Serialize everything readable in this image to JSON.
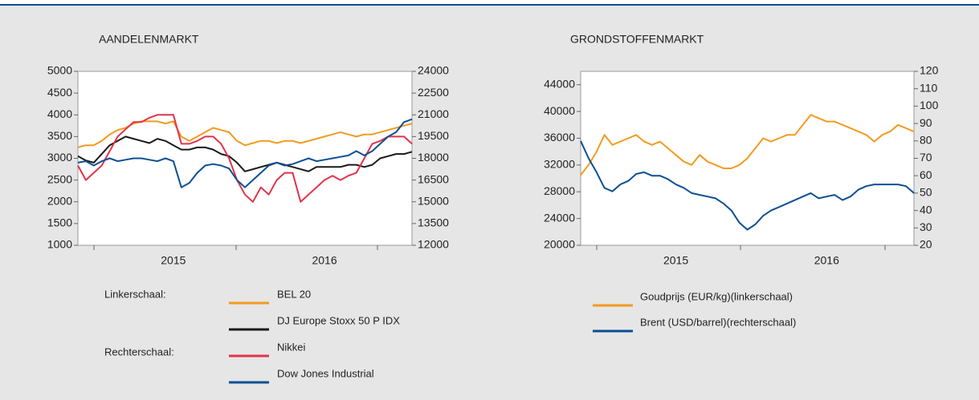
{
  "chart_data": [
    {
      "type": "line",
      "title": "AANDELENMARKT",
      "categories": [
        null,
        null,
        null,
        null,
        null,
        null,
        null,
        null,
        null,
        null,
        null,
        null,
        "2015",
        null,
        null,
        null,
        null,
        null,
        null,
        null,
        null,
        null,
        null,
        null,
        null,
        null,
        null,
        null,
        null,
        null,
        null,
        "2016",
        null,
        null,
        null,
        null,
        null,
        null,
        null,
        null,
        null,
        null,
        null
      ],
      "ylim": [
        1000,
        5000
      ],
      "yticks": [
        1000,
        1500,
        2000,
        2500,
        3000,
        3500,
        4000,
        4500,
        5000
      ],
      "y2lim": [
        12000,
        24000
      ],
      "y2ticks": [
        12000,
        13500,
        15000,
        16500,
        18000,
        19500,
        21000,
        22500,
        24000
      ],
      "legend_left_label": "Linkerschaal:",
      "legend_right_label": "Rechterschaal:",
      "series": [
        {
          "name": "BEL 20",
          "color": "#f39b1f",
          "axis": "y",
          "values": [
            3250,
            3300,
            3300,
            3400,
            3550,
            3650,
            3700,
            3800,
            3850,
            3850,
            3850,
            3800,
            3850,
            3500,
            3400,
            3500,
            3600,
            3700,
            3650,
            3600,
            3400,
            3300,
            3350,
            3400,
            3400,
            3350,
            3400,
            3400,
            3350,
            3400,
            3450,
            3500,
            3550,
            3600,
            3550,
            3500,
            3550,
            3550,
            3600,
            3650,
            3700,
            3750,
            3800
          ]
        },
        {
          "name": "DJ Europe Stoxx 50 P IDX",
          "color": "#1a1a1a",
          "axis": "y",
          "values": [
            3050,
            2950,
            2900,
            3100,
            3300,
            3400,
            3500,
            3450,
            3400,
            3350,
            3450,
            3400,
            3300,
            3200,
            3200,
            3250,
            3250,
            3200,
            3100,
            3050,
            2900,
            2700,
            2750,
            2800,
            2850,
            2900,
            2850,
            2800,
            2750,
            2700,
            2800,
            2800,
            2800,
            2800,
            2850,
            2850,
            2800,
            2850,
            3000,
            3050,
            3100,
            3100,
            3150
          ]
        },
        {
          "name": "Nikkei",
          "color": "#e0344a",
          "axis": "y2",
          "values": [
            17500,
            16500,
            17000,
            17500,
            18500,
            19500,
            20000,
            20500,
            20500,
            20800,
            21000,
            21000,
            21000,
            19000,
            19000,
            19200,
            19500,
            19500,
            19000,
            18000,
            16500,
            15500,
            15000,
            16000,
            15500,
            16500,
            17000,
            17000,
            15000,
            15500,
            16000,
            16500,
            16800,
            16500,
            16800,
            17000,
            18000,
            19000,
            19200,
            19500,
            19500,
            19500,
            19000
          ]
        },
        {
          "name": "Dow Jones Industrial",
          "color": "#0b4f94",
          "axis": "y2",
          "values": [
            17700,
            17800,
            17500,
            17800,
            18000,
            17800,
            17900,
            18000,
            18000,
            17900,
            17800,
            18000,
            17800,
            16000,
            16300,
            17000,
            17500,
            17600,
            17500,
            17300,
            16500,
            16000,
            16500,
            17000,
            17500,
            17700,
            17500,
            17600,
            17800,
            18000,
            17800,
            17900,
            18000,
            18100,
            18200,
            18500,
            18200,
            18500,
            19000,
            19500,
            19800,
            20500,
            20700
          ]
        }
      ]
    },
    {
      "type": "line",
      "title": "GRONDSTOFFENMARKT",
      "categories": [
        null,
        null,
        null,
        null,
        null,
        null,
        null,
        null,
        null,
        null,
        null,
        null,
        "2015",
        null,
        null,
        null,
        null,
        null,
        null,
        null,
        null,
        null,
        null,
        null,
        null,
        null,
        null,
        null,
        null,
        null,
        null,
        "2016",
        null,
        null,
        null,
        null,
        null,
        null,
        null,
        null,
        null,
        null,
        null
      ],
      "ylim": [
        20000,
        46000
      ],
      "yticks": [
        20000,
        24000,
        28000,
        32000,
        36000,
        40000,
        44000
      ],
      "y2lim": [
        20,
        120
      ],
      "y2ticks": [
        20,
        30,
        40,
        50,
        60,
        70,
        80,
        90,
        100,
        110,
        120
      ],
      "series": [
        {
          "name": "Goudprijs (EUR/kg)(linkerschaal)",
          "color": "#f39b1f",
          "axis": "y",
          "values": [
            30500,
            32000,
            34000,
            36500,
            35000,
            35500,
            36000,
            36500,
            35500,
            35000,
            35500,
            34500,
            33500,
            32500,
            32000,
            33500,
            32500,
            32000,
            31500,
            31500,
            32000,
            33000,
            34500,
            36000,
            35500,
            36000,
            36500,
            36500,
            38000,
            39500,
            39000,
            38500,
            38500,
            38000,
            37500,
            37000,
            36500,
            35500,
            36500,
            37000,
            38000,
            37500,
            37000
          ]
        },
        {
          "name": "Brent (USD/barrel)(rechterschaal)",
          "color": "#0b4f94",
          "axis": "y2",
          "values": [
            80,
            70,
            62,
            53,
            51,
            55,
            57,
            61,
            62,
            60,
            60,
            58,
            55,
            53,
            50,
            49,
            48,
            47,
            44,
            40,
            33,
            29,
            32,
            37,
            40,
            42,
            44,
            46,
            48,
            50,
            47,
            48,
            49,
            46,
            48,
            52,
            54,
            55,
            55,
            55,
            55,
            54,
            50
          ]
        }
      ]
    }
  ]
}
